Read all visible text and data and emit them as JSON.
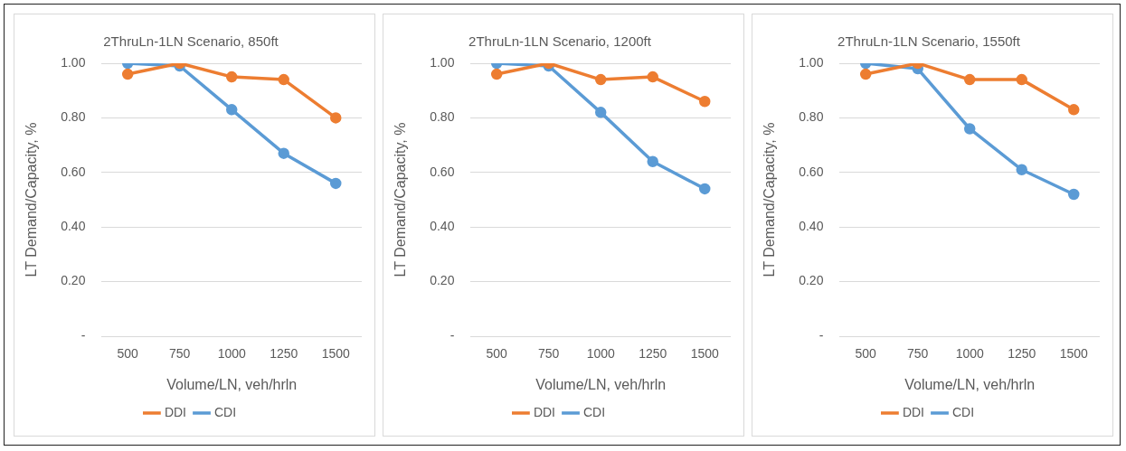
{
  "chart_data": [
    {
      "type": "line",
      "title": "2ThruLn-1LN Scenario, 850ft",
      "xlabel": "Volume/LN, veh/hrln",
      "ylabel": "LT Demand/Capacity, %",
      "categories": [
        "500",
        "750",
        "1000",
        "1250",
        "1500"
      ],
      "series": [
        {
          "name": "CDI",
          "color": "#5b9bd5",
          "values": [
            1.0,
            0.99,
            0.83,
            0.67,
            0.56
          ]
        },
        {
          "name": "DDI",
          "color": "#ed7d31",
          "values": [
            0.96,
            1.0,
            0.95,
            0.94,
            0.8
          ]
        }
      ],
      "ylim": [
        0,
        1
      ],
      "yticks": [
        {
          "value": 0,
          "label": "-"
        },
        {
          "value": 0.2,
          "label": "0.20"
        },
        {
          "value": 0.4,
          "label": "0.40"
        },
        {
          "value": 0.6,
          "label": "0.60"
        },
        {
          "value": 0.8,
          "label": "0.80"
        },
        {
          "value": 1,
          "label": "1.00"
        }
      ],
      "grid": "y",
      "legend": "bottom",
      "marker": "circle"
    },
    {
      "type": "line",
      "title": "2ThruLn-1LN Scenario, 1200ft",
      "xlabel": "Volume/LN, veh/hrln",
      "ylabel": "LT Demand/Capacity, %",
      "categories": [
        "500",
        "750",
        "1000",
        "1250",
        "1500"
      ],
      "series": [
        {
          "name": "CDI",
          "color": "#5b9bd5",
          "values": [
            1.0,
            0.99,
            0.82,
            0.64,
            0.54
          ]
        },
        {
          "name": "DDI",
          "color": "#ed7d31",
          "values": [
            0.96,
            1.0,
            0.94,
            0.95,
            0.86
          ]
        }
      ],
      "ylim": [
        0,
        1
      ],
      "yticks": [
        {
          "value": 0,
          "label": "-"
        },
        {
          "value": 0.2,
          "label": "0.20"
        },
        {
          "value": 0.4,
          "label": "0.40"
        },
        {
          "value": 0.6,
          "label": "0.60"
        },
        {
          "value": 0.8,
          "label": "0.80"
        },
        {
          "value": 1,
          "label": "1.00"
        }
      ],
      "grid": "y",
      "legend": "bottom",
      "marker": "circle"
    },
    {
      "type": "line",
      "title": "2ThruLn-1LN Scenario, 1550ft",
      "xlabel": "Volume/LN, veh/hrln",
      "ylabel": "LT Demand/Capacity, %",
      "categories": [
        "500",
        "750",
        "1000",
        "1250",
        "1500"
      ],
      "series": [
        {
          "name": "CDI",
          "color": "#5b9bd5",
          "values": [
            1.0,
            0.98,
            0.76,
            0.61,
            0.52
          ]
        },
        {
          "name": "DDI",
          "color": "#ed7d31",
          "values": [
            0.96,
            1.0,
            0.94,
            0.94,
            0.83
          ]
        }
      ],
      "ylim": [
        0,
        1
      ],
      "yticks": [
        {
          "value": 0,
          "label": "-"
        },
        {
          "value": 0.2,
          "label": "0.20"
        },
        {
          "value": 0.4,
          "label": "0.40"
        },
        {
          "value": 0.6,
          "label": "0.60"
        },
        {
          "value": 0.8,
          "label": "0.80"
        },
        {
          "value": 1,
          "label": "1.00"
        }
      ],
      "grid": "y",
      "legend": "bottom",
      "marker": "circle"
    }
  ]
}
